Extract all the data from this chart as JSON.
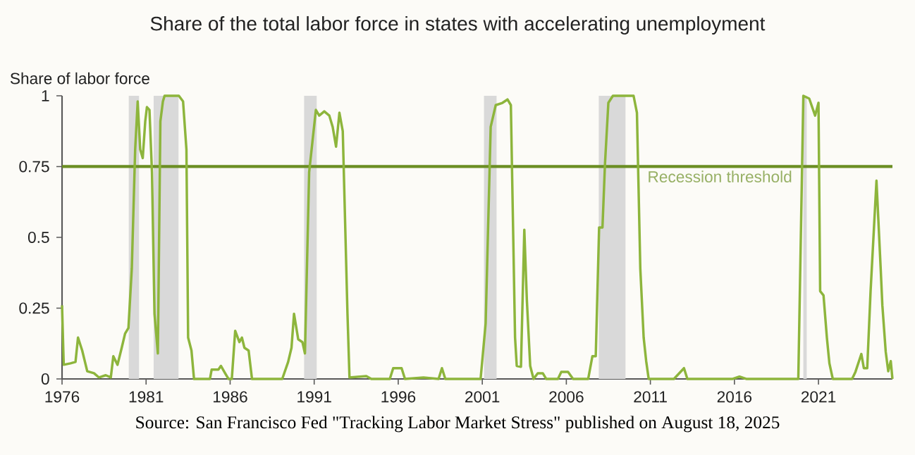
{
  "chart_data": {
    "type": "line",
    "title": "Share of the total labor force in states with accelerating unemployment",
    "ylabel": "Share of labor force",
    "annotations": [
      "Source: San Francisco Fed \"Tracking Labor Market Stress\" published on August 18, 2025"
    ],
    "x": [
      1976.0,
      1976.1,
      1976.5,
      1976.8,
      1976.95,
      1977.2,
      1977.5,
      1977.9,
      1978.2,
      1978.6,
      1978.9,
      1979.05,
      1979.3,
      1979.55,
      1979.75,
      1979.95,
      1980.15,
      1980.35,
      1980.5,
      1980.65,
      1980.8,
      1980.95,
      1981.05,
      1981.2,
      1981.35,
      1981.5,
      1981.7,
      1981.85,
      1982.0,
      1982.1,
      1982.95,
      1983.2,
      1983.4,
      1983.5,
      1983.7,
      1983.85,
      1984.8,
      1984.9,
      1985.3,
      1985.45,
      1985.7,
      1985.9,
      1986.1,
      1986.3,
      1986.55,
      1986.7,
      1986.85,
      1987.1,
      1987.3,
      1989.1,
      1989.45,
      1989.65,
      1989.8,
      1990.05,
      1990.3,
      1990.45,
      1990.7,
      1990.9,
      1991.1,
      1991.3,
      1991.6,
      1991.9,
      1992.1,
      1992.3,
      1992.5,
      1992.7,
      1992.98,
      1993.1,
      1994.1,
      1994.4,
      1995.5,
      1995.7,
      1996.2,
      1996.4,
      1997.5,
      1998.4,
      1998.6,
      1998.8,
      2000.9,
      2001.2,
      2001.5,
      2001.8,
      2002.2,
      2002.5,
      2002.7,
      2002.95,
      2003.05,
      2003.3,
      2003.5,
      2003.65,
      2003.85,
      2004.05,
      2004.3,
      2004.6,
      2004.8,
      2005.5,
      2005.7,
      2006.1,
      2006.4,
      2007.3,
      2007.55,
      2007.75,
      2007.95,
      2008.15,
      2008.3,
      2008.5,
      2008.77,
      2010.0,
      2010.2,
      2010.4,
      2010.6,
      2010.75,
      2010.9,
      2012.4,
      2013.0,
      2013.2,
      2015.9,
      2016.3,
      2016.7,
      2019.8,
      2020.1,
      2020.45,
      2020.8,
      2021.0,
      2021.1,
      2021.3,
      2021.5,
      2021.65,
      2021.85,
      2023.0,
      2023.2,
      2023.55,
      2023.7,
      2023.9,
      2024.1,
      2024.45,
      2024.7,
      2024.8,
      2025.0,
      2025.15,
      2025.3,
      2025.4
    ],
    "series": [
      {
        "color": "#8db53c",
        "values": [
          0.26,
          0.05,
          0.055,
          0.06,
          0.146,
          0.1,
          0.027,
          0.02,
          0.005,
          0.013,
          0.005,
          0.08,
          0.05,
          0.11,
          0.16,
          0.18,
          0.39,
          0.81,
          0.98,
          0.81,
          0.78,
          0.91,
          0.96,
          0.95,
          0.73,
          0.23,
          0.09,
          0.91,
          0.98,
          1.0,
          1.0,
          0.98,
          0.81,
          0.146,
          0.1,
          0.0,
          0.0,
          0.033,
          0.033,
          0.046,
          0.02,
          0.0,
          0.0,
          0.17,
          0.13,
          0.146,
          0.11,
          0.1,
          0.0,
          0.0,
          0.06,
          0.11,
          0.23,
          0.14,
          0.13,
          0.09,
          0.73,
          0.84,
          0.95,
          0.93,
          0.945,
          0.93,
          0.89,
          0.82,
          0.94,
          0.875,
          0.23,
          0.005,
          0.01,
          0.0,
          0.0,
          0.038,
          0.038,
          0.0,
          0.005,
          0.0,
          0.038,
          0.0,
          0.0,
          0.196,
          0.89,
          0.967,
          0.975,
          0.987,
          0.967,
          0.146,
          0.046,
          0.043,
          0.527,
          0.28,
          0.046,
          0.0,
          0.02,
          0.02,
          0.0,
          0.0,
          0.025,
          0.025,
          0.0,
          0.0,
          0.08,
          0.08,
          0.535,
          0.535,
          0.76,
          0.975,
          1.0,
          1.0,
          0.94,
          0.39,
          0.146,
          0.063,
          0.0,
          0.0,
          0.038,
          0.0,
          0.0,
          0.008,
          0.0,
          0.0,
          1.0,
          0.99,
          0.93,
          0.975,
          0.31,
          0.295,
          0.146,
          0.055,
          0.0,
          0.0,
          0.025,
          0.088,
          0.038,
          0.038,
          0.31,
          0.7,
          0.39,
          0.26,
          0.096,
          0.027,
          0.063,
          0.0
        ]
      }
    ],
    "xlim": [
      1976,
      2025.4
    ],
    "xticks": [
      1976,
      1981,
      1986,
      1991,
      1996,
      2001,
      2006,
      2011,
      2016,
      2021
    ],
    "ylim": [
      0,
      1
    ],
    "yticks": [
      0,
      0.25,
      0.5,
      0.75,
      1
    ],
    "marker": "none",
    "line_style": "solid",
    "ref_lines": [
      {
        "axis": "y",
        "value": 0.75,
        "label": "Recession threshold",
        "color": "#6b8e23"
      }
    ],
    "bands": [
      {
        "axis": "x",
        "from": 1979.97,
        "to": 1980.58,
        "color": "#d9d9d9"
      },
      {
        "axis": "x",
        "from": 1981.45,
        "to": 1982.93,
        "color": "#d9d9d9"
      },
      {
        "axis": "x",
        "from": 1990.4,
        "to": 1991.15,
        "color": "#d9d9d9"
      },
      {
        "axis": "x",
        "from": 2001.1,
        "to": 2001.85,
        "color": "#d9d9d9"
      },
      {
        "axis": "x",
        "from": 2007.93,
        "to": 2009.52,
        "color": "#d9d9d9"
      },
      {
        "axis": "x",
        "from": 2020.1,
        "to": 2020.3,
        "color": "#d9d9d9"
      }
    ]
  }
}
